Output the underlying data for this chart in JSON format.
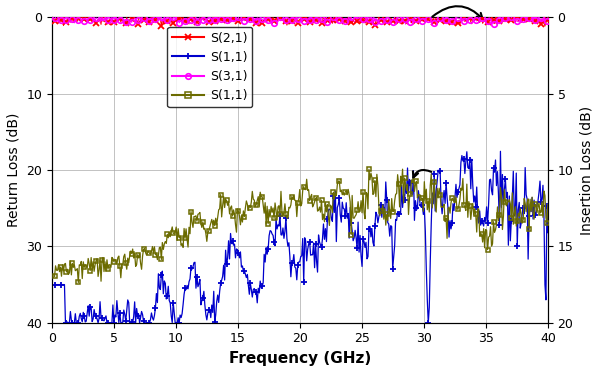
{
  "xlabel": "Frequency (GHz)",
  "ylabel_left": "Return Loss (dB)",
  "ylabel_right": "Insertion Loss (dB)",
  "xlim": [
    0,
    40
  ],
  "ylim_left": [
    40,
    0
  ],
  "ylim_right": [
    20,
    0
  ],
  "yticks_left": [
    0,
    10,
    20,
    30,
    40
  ],
  "yticks_right": [
    0,
    5,
    10,
    15,
    20
  ],
  "xticks": [
    0,
    5,
    10,
    15,
    20,
    25,
    30,
    35,
    40
  ],
  "colors": {
    "S21": "#ff0000",
    "S11_blue": "#0000cc",
    "S31": "#ff00ff",
    "S11_olive": "#6b6b00"
  },
  "background": "#ffffff",
  "grid_color": "#aaaaaa"
}
